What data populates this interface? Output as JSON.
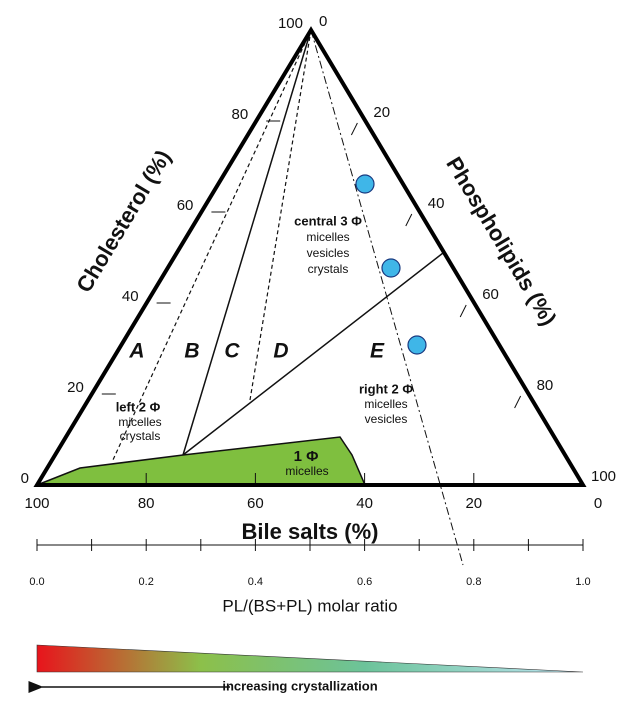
{
  "axes": {
    "left": {
      "title": "Cholesterol (%)",
      "ticks": [
        0,
        20,
        40,
        60,
        80,
        100
      ]
    },
    "right": {
      "title": "Phospholipids (%)",
      "ticks": [
        0,
        20,
        40,
        60,
        80,
        100
      ]
    },
    "bottom": {
      "title": "Bile salts (%)",
      "ticks": [
        0,
        20,
        40,
        60,
        80,
        100
      ]
    }
  },
  "regions": [
    "A",
    "B",
    "C",
    "D",
    "E"
  ],
  "phases": [
    {
      "title": "left 2 Φ",
      "items": [
        "micelles",
        "crystals"
      ]
    },
    {
      "title": "central 3 Φ",
      "items": [
        "micelles",
        "vesicles",
        "crystals"
      ]
    },
    {
      "title": "right 2 Φ",
      "items": [
        "micelles",
        "vesicles"
      ]
    },
    {
      "title": "1 Φ",
      "items": [
        "micelles"
      ]
    }
  ],
  "ratio_axis": {
    "title": "PL/(BS+PL) molar ratio",
    "range": [
      0,
      1
    ],
    "ticks": [
      {
        "value": 0,
        "label": "0.0"
      },
      {
        "value": 0.2,
        "label": "0.2"
      },
      {
        "value": 0.4,
        "label": "0.4"
      },
      {
        "value": 0.6,
        "label": "0.6"
      },
      {
        "value": 0.8,
        "label": "0.8"
      },
      {
        "value": 1,
        "label": "1.0"
      }
    ],
    "minor_ticks": [
      0.1,
      0.3,
      0.5,
      0.7,
      0.9
    ]
  },
  "gradient_label": "increasing crystallization"
}
